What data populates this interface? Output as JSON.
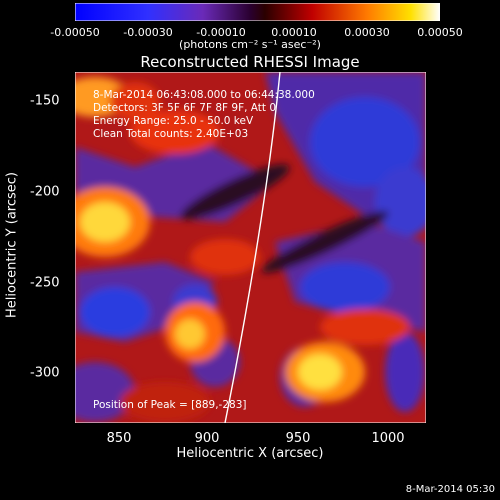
{
  "colorbar": {
    "ticks": [
      "-0.00050",
      "-0.00030",
      "-0.00010",
      "0.00010",
      "0.00030",
      "0.00050"
    ],
    "units": "(photons cm⁻² s⁻¹ asec⁻²)"
  },
  "title": "Reconstructed RHESSI Image",
  "info": {
    "time_range": "8-Mar-2014 06:43:08.000 to 06:44:38.000",
    "detectors": "Detectors: 3F 5F 6F 7F 8F 9F, Att 0",
    "energy": "Energy Range: 25.0 - 50.0 keV",
    "clean": "Clean    Total counts: 2.40E+03",
    "peak": "Position of Peak = [889,-283]"
  },
  "axes": {
    "xlabel": "Heliocentric X (arcsec)",
    "ylabel": "Heliocentric Y (arcsec)",
    "xticks": [
      "850",
      "900",
      "950",
      "1000"
    ],
    "yticks": [
      "-150",
      "-200",
      "-250",
      "-300"
    ]
  },
  "footer_date": "8-Mar-2014 05:30",
  "colors": {
    "blue": "#1e3cff",
    "purple": "#5a2aa0",
    "red": "#d81e1e",
    "orange": "#ff8a1a",
    "yellow": "#ffe23a",
    "white": "#ffffff"
  }
}
